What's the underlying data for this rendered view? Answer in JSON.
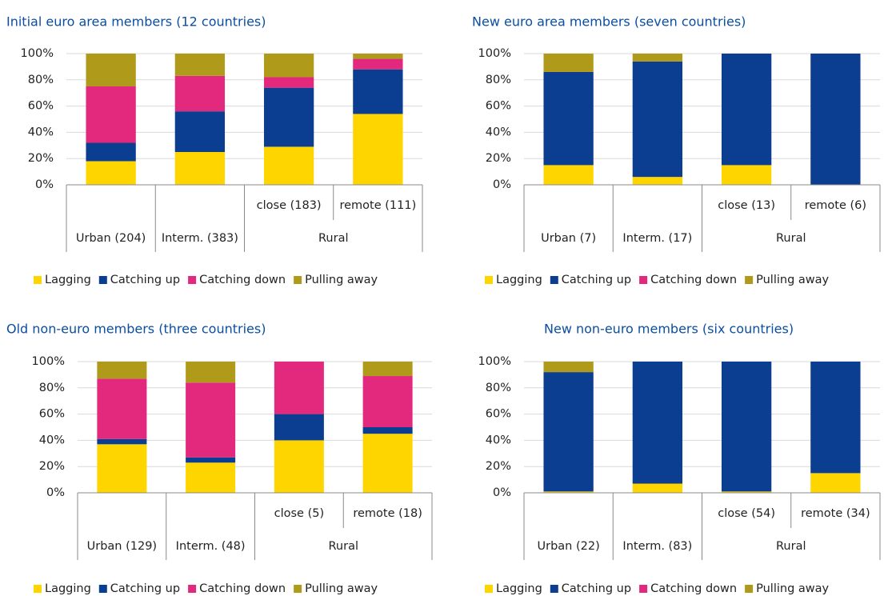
{
  "chart_data": [
    {
      "type": "bar",
      "stacked": true,
      "title": "Initial euro area members (12 countries)",
      "categories": [
        "Urban (204)",
        "Interm. (383)",
        "close (183)",
        "remote (111)"
      ],
      "category_groups": [
        null,
        null,
        "Rural",
        "Rural"
      ],
      "series": [
        {
          "name": "Lagging",
          "color": "#ffd500",
          "values": [
            18,
            25,
            29,
            54
          ]
        },
        {
          "name": "Catching up",
          "color": "#0b3d91",
          "values": [
            14,
            31,
            45,
            34
          ]
        },
        {
          "name": "Catching down",
          "color": "#e3297d",
          "values": [
            43,
            27,
            8,
            8
          ]
        },
        {
          "name": "Pulling away",
          "color": "#b09a1a",
          "values": [
            25,
            17,
            18,
            4
          ]
        }
      ],
      "ylim": [
        0,
        100
      ],
      "yticks": [
        {
          "value": 0,
          "label": "0%"
        },
        {
          "value": 20,
          "label": "20%"
        },
        {
          "value": 40,
          "label": "40%"
        },
        {
          "value": 60,
          "label": "60%"
        },
        {
          "value": 80,
          "label": "80%"
        },
        {
          "value": 100,
          "label": "100%"
        }
      ],
      "grid": true,
      "legend": "bottom"
    },
    {
      "type": "bar",
      "stacked": true,
      "title": "New euro area members (seven countries)",
      "categories": [
        "Urban (7)",
        "Interm. (17)",
        "close (13)",
        "remote (6)"
      ],
      "category_groups": [
        null,
        null,
        "Rural",
        "Rural"
      ],
      "series": [
        {
          "name": "Lagging",
          "color": "#ffd500",
          "values": [
            15,
            6,
            15,
            0
          ]
        },
        {
          "name": "Catching up",
          "color": "#0b3d91",
          "values": [
            71,
            88,
            85,
            100
          ]
        },
        {
          "name": "Catching down",
          "color": "#e3297d",
          "values": [
            0,
            0,
            0,
            0
          ]
        },
        {
          "name": "Pulling away",
          "color": "#b09a1a",
          "values": [
            14,
            6,
            0,
            0
          ]
        }
      ],
      "ylim": [
        0,
        100
      ],
      "yticks": [
        {
          "value": 0,
          "label": "0%"
        },
        {
          "value": 20,
          "label": "20%"
        },
        {
          "value": 40,
          "label": "40%"
        },
        {
          "value": 60,
          "label": "60%"
        },
        {
          "value": 80,
          "label": "80%"
        },
        {
          "value": 100,
          "label": "100%"
        }
      ],
      "grid": true,
      "legend": "bottom"
    },
    {
      "type": "bar",
      "stacked": true,
      "title": "Old non-euro members (three countries)",
      "categories": [
        "Urban (129)",
        "Interm. (48)",
        "close (5)",
        "remote (18)"
      ],
      "category_groups": [
        null,
        null,
        "Rural",
        "Rural"
      ],
      "series": [
        {
          "name": "Lagging",
          "color": "#ffd500",
          "values": [
            37,
            23,
            40,
            45
          ]
        },
        {
          "name": "Catching up",
          "color": "#0b3d91",
          "values": [
            4,
            4,
            20,
            5
          ]
        },
        {
          "name": "Catching down",
          "color": "#e3297d",
          "values": [
            46,
            57,
            40,
            39
          ]
        },
        {
          "name": "Pulling away",
          "color": "#b09a1a",
          "values": [
            13,
            16,
            0,
            11
          ]
        }
      ],
      "ylim": [
        0,
        100
      ],
      "yticks": [
        {
          "value": 0,
          "label": "0%"
        },
        {
          "value": 20,
          "label": "20%"
        },
        {
          "value": 40,
          "label": "40%"
        },
        {
          "value": 60,
          "label": "60%"
        },
        {
          "value": 80,
          "label": "80%"
        },
        {
          "value": 100,
          "label": "100%"
        }
      ],
      "grid": true,
      "legend": "bottom"
    },
    {
      "type": "bar",
      "stacked": true,
      "title": "New non-euro members (six countries)",
      "categories": [
        "Urban (22)",
        "Interm. (83)",
        "close (54)",
        "remote (34)"
      ],
      "category_groups": [
        null,
        null,
        "Rural",
        "Rural"
      ],
      "series": [
        {
          "name": "Lagging",
          "color": "#ffd500",
          "values": [
            1,
            7,
            1,
            15
          ]
        },
        {
          "name": "Catching up",
          "color": "#0b3d91",
          "values": [
            91,
            93,
            99,
            85
          ]
        },
        {
          "name": "Catching down",
          "color": "#e3297d",
          "values": [
            0,
            0,
            0,
            0
          ]
        },
        {
          "name": "Pulling away",
          "color": "#b09a1a",
          "values": [
            8,
            0,
            0,
            0
          ]
        }
      ],
      "ylim": [
        0,
        100
      ],
      "yticks": [
        {
          "value": 0,
          "label": "0%"
        },
        {
          "value": 20,
          "label": "20%"
        },
        {
          "value": 40,
          "label": "40%"
        },
        {
          "value": 60,
          "label": "60%"
        },
        {
          "value": 80,
          "label": "80%"
        },
        {
          "value": 100,
          "label": "100%"
        }
      ],
      "grid": true,
      "legend": "bottom"
    }
  ]
}
